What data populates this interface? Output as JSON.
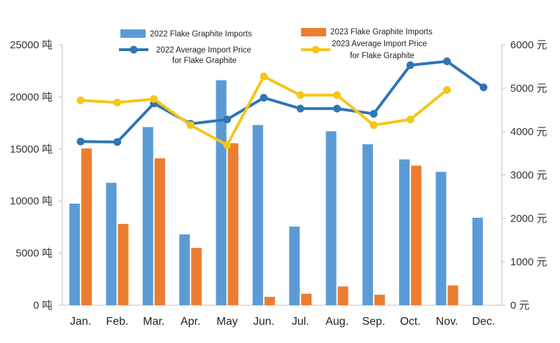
{
  "chart_data": {
    "type": "bar+line",
    "categories": [
      "Jan.",
      "Feb.",
      "Mar.",
      "Apr.",
      "May",
      "Jun.",
      "Jul.",
      "Aug.",
      "Sep.",
      "Oct.",
      "Nov.",
      "Dec."
    ],
    "bar_series": [
      {
        "name": "2022 Flake Graphite Imports",
        "color": "#5b9bd5",
        "values": [
          9750,
          11750,
          17100,
          6800,
          21600,
          17300,
          7550,
          16700,
          15450,
          14000,
          12800,
          8400
        ]
      },
      {
        "name": "2023 Flake Graphite Imports",
        "color": "#ed7d31",
        "values": [
          15050,
          7800,
          14100,
          5500,
          15550,
          800,
          1100,
          1800,
          1000,
          13400,
          1900,
          null
        ]
      }
    ],
    "line_series": [
      {
        "name": [
          "2022 Average Import Price",
          "for Flake Graphite"
        ],
        "color": "#2e75b6",
        "values": [
          3770,
          3760,
          4650,
          4180,
          4280,
          4780,
          4530,
          4530,
          4410,
          5530,
          5620,
          5020
        ]
      },
      {
        "name": [
          "2023 Average Import Price",
          "for Flake Graphite"
        ],
        "color": "#f5c518",
        "values": [
          4720,
          4670,
          4750,
          4150,
          3690,
          5270,
          4840,
          4840,
          4150,
          4280,
          4960,
          null
        ]
      }
    ],
    "y_left": {
      "ticks": [
        "0 吨",
        "5000 吨",
        "10000 吨",
        "15000 吨",
        "20000 吨",
        "25000 吨"
      ],
      "ylim": [
        0,
        25000
      ]
    },
    "y_right": {
      "ticks": [
        "0 元",
        "1000 元",
        "2000 元",
        "3000 元",
        "4000 元",
        "5000 元",
        "6000 元"
      ],
      "ylim": [
        0,
        6000
      ]
    },
    "grid": false,
    "legend_position": "top"
  }
}
